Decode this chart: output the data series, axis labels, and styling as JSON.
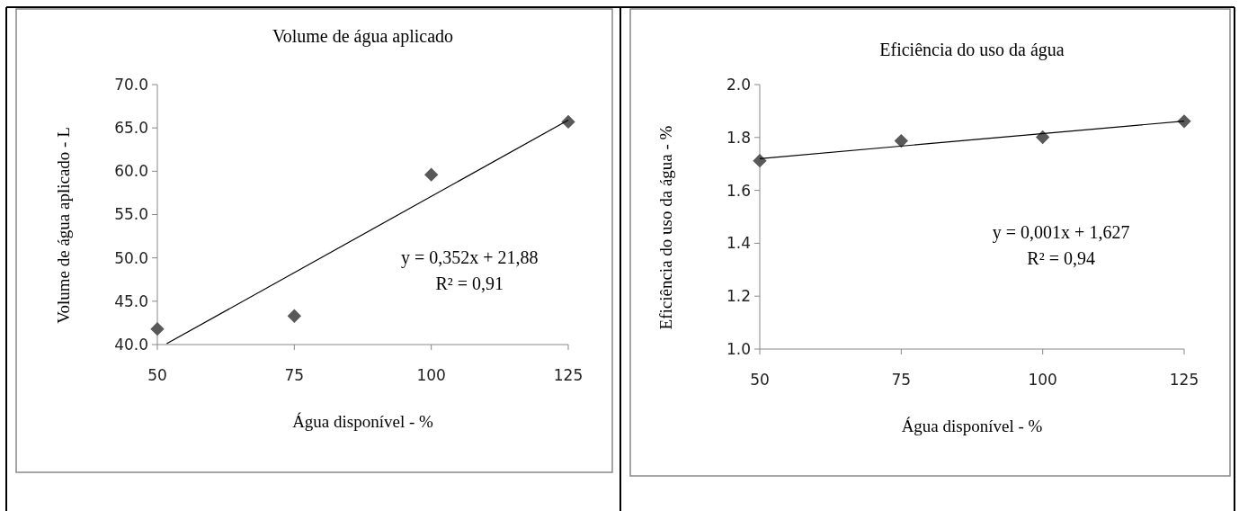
{
  "chart_data": [
    {
      "type": "scatter",
      "title": "Volume de água aplicado",
      "xlabel": "Água disponível - %",
      "ylabel": "Volume de água aplicado - L",
      "xlim": [
        50,
        125
      ],
      "xticks": [
        50,
        75,
        100,
        125
      ],
      "ylim": [
        40,
        70
      ],
      "yticks": [
        {
          "value": 40,
          "label": "40.0"
        },
        {
          "value": 45,
          "label": "45.0"
        },
        {
          "value": 50,
          "label": "50.0"
        },
        {
          "value": 55,
          "label": "55.0"
        },
        {
          "value": 60,
          "label": "60.0"
        },
        {
          "value": 65,
          "label": "65.0"
        },
        {
          "value": 70,
          "label": "70.0"
        }
      ],
      "grid": false,
      "marker": "diamond",
      "series": [
        {
          "color": "#595959",
          "x": [
            50,
            75,
            100,
            125
          ],
          "values": [
            41.8,
            43.3,
            59.6,
            65.7
          ]
        },
        {
          "type": "line",
          "color": "#000000",
          "marker": "none",
          "x": [
            51.7,
            125
          ],
          "values": [
            40.1,
            65.9
          ]
        }
      ],
      "annotations": [
        "y = 0,352x + 21,88",
        "R² = 0,91"
      ]
    },
    {
      "type": "scatter",
      "title": "Eficiência do uso da água",
      "xlabel": "Água disponível - %",
      "ylabel": "Eficiência do uso da água - %",
      "xlim": [
        50,
        125
      ],
      "xticks": [
        50,
        75,
        100,
        125
      ],
      "ylim": [
        1,
        2
      ],
      "yticks": [
        {
          "value": 1,
          "label": "1.0"
        },
        {
          "value": 1.2,
          "label": "1.2"
        },
        {
          "value": 1.4,
          "label": "1.4"
        },
        {
          "value": 1.6,
          "label": "1.6"
        },
        {
          "value": 1.8,
          "label": "1.8"
        },
        {
          "value": 2,
          "label": "2.0"
        }
      ],
      "grid": false,
      "marker": "diamond",
      "series": [
        {
          "color": "#595959",
          "x": [
            50,
            75,
            100,
            125
          ],
          "values": [
            1.712,
            1.787,
            1.801,
            1.861
          ]
        },
        {
          "type": "line",
          "color": "#000000",
          "marker": "none",
          "x": [
            50,
            125
          ],
          "values": [
            1.72,
            1.862
          ]
        }
      ],
      "annotations": [
        "y = 0,001x + 1,627",
        "R² = 0,94"
      ]
    }
  ]
}
